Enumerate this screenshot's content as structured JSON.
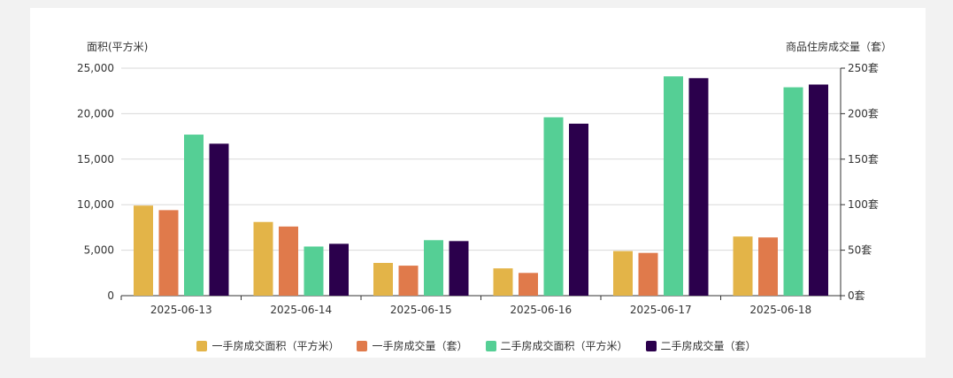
{
  "chart_data": {
    "type": "bar",
    "categories": [
      "2025-06-13",
      "2025-06-14",
      "2025-06-15",
      "2025-06-16",
      "2025-06-17",
      "2025-06-18"
    ],
    "left_axis": {
      "label": "面积(平方米)",
      "ylim": [
        0,
        25000
      ],
      "ticks": [
        "0",
        "5,000",
        "10,000",
        "15,000",
        "20,000",
        "25,000"
      ]
    },
    "right_axis": {
      "label": "商品住房成交量（套）",
      "ylim": [
        0,
        250
      ],
      "ticks": [
        "0套",
        "50套",
        "100套",
        "150套",
        "200套",
        "250套"
      ]
    },
    "series": [
      {
        "name": "一手房成交面积（平方米）",
        "axis": "left",
        "color": "#e3b448",
        "values": [
          9900,
          8100,
          3600,
          3000,
          4900,
          6500
        ]
      },
      {
        "name": "一手房成交量（套）",
        "axis": "right",
        "color": "#e07a4b",
        "values": [
          94,
          76,
          33,
          25,
          47,
          64
        ]
      },
      {
        "name": "二手房成交面积（平方米）",
        "axis": "left",
        "color": "#55cf95",
        "values": [
          17700,
          5400,
          6100,
          19600,
          24100,
          22900
        ]
      },
      {
        "name": "二手房成交量（套）",
        "axis": "right",
        "color": "#2b004c",
        "values": [
          167,
          57,
          60,
          189,
          239,
          232
        ]
      }
    ],
    "grid": true,
    "legend_position": "bottom"
  }
}
